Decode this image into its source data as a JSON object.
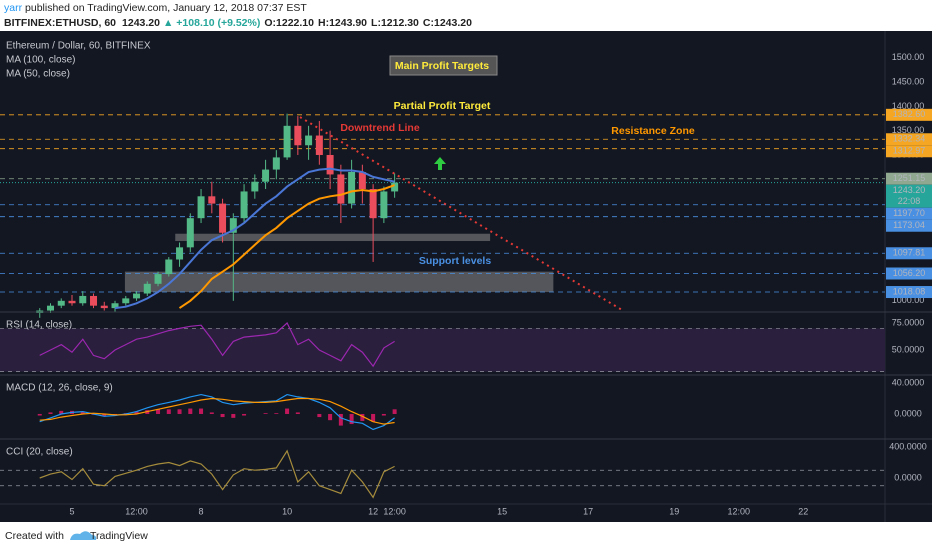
{
  "header": {
    "author": "yarr",
    "published": " published on TradingView.com, January 12, 2018 07:37 EST",
    "symbol": "BITFINEX:ETHUSD, 60",
    "price": "1243.20",
    "change": "▲ +108.10 (+9.52%)",
    "open": "O:1222.10",
    "high": "H:1243.90",
    "low": "L:1212.30",
    "close": "C:1243.20"
  },
  "footer": {
    "created": "Created with",
    "brand": "TradingView"
  },
  "chart_data": [
    {
      "type": "candlestick",
      "title": "Ethereum / Dollar, 60, BITFINEX",
      "up_color": "#53b987",
      "down_color": "#eb4d5c",
      "x": [
        4.25,
        4.5,
        4.75,
        5,
        5.25,
        5.5,
        5.75,
        6,
        6.25,
        6.5,
        6.75,
        7,
        7.25,
        7.5,
        7.75,
        8,
        8.25,
        8.5,
        8.75,
        9,
        9.25,
        9.5,
        9.75,
        10,
        10.25,
        10.5,
        10.75,
        11,
        11.25,
        11.5,
        11.75,
        12,
        12.25,
        12.5
      ],
      "open": [
        975,
        980,
        990,
        1000,
        995,
        1010,
        990,
        985,
        995,
        1005,
        1015,
        1035,
        1055,
        1085,
        1110,
        1170,
        1215,
        1200,
        1140,
        1170,
        1225,
        1245,
        1270,
        1295,
        1360,
        1320,
        1340,
        1300,
        1260,
        1200,
        1265,
        1230,
        1170,
        1225
      ],
      "high": [
        985,
        995,
        1005,
        1012,
        1020,
        1015,
        998,
        1000,
        1010,
        1020,
        1040,
        1060,
        1090,
        1120,
        1180,
        1230,
        1245,
        1210,
        1180,
        1240,
        1260,
        1290,
        1310,
        1385,
        1380,
        1360,
        1370,
        1350,
        1280,
        1290,
        1280,
        1240,
        1235,
        1262
      ],
      "low": [
        965,
        975,
        985,
        990,
        990,
        985,
        980,
        978,
        990,
        1000,
        1010,
        1030,
        1050,
        1070,
        1100,
        1160,
        1180,
        1120,
        1000,
        1160,
        1210,
        1230,
        1250,
        1290,
        1300,
        1290,
        1280,
        1230,
        1160,
        1190,
        1200,
        1080,
        1160,
        1212
      ],
      "close": [
        980,
        990,
        1000,
        995,
        1010,
        990,
        985,
        995,
        1005,
        1015,
        1035,
        1055,
        1085,
        1110,
        1170,
        1215,
        1200,
        1140,
        1170,
        1225,
        1245,
        1270,
        1295,
        1360,
        1320,
        1340,
        1300,
        1260,
        1200,
        1265,
        1230,
        1170,
        1225,
        1243.2
      ],
      "series": [
        {
          "name": "MA (100, close)",
          "color": "#ff9800",
          "values": [
            null,
            null,
            null,
            null,
            null,
            null,
            null,
            null,
            null,
            null,
            null,
            null,
            null,
            985,
            1000,
            1020,
            1045,
            1060,
            1075,
            1095,
            1115,
            1135,
            1150,
            1170,
            1185,
            1200,
            1210,
            1215,
            1218,
            1225,
            1228,
            1225,
            1230,
            1238
          ]
        },
        {
          "name": "MA (50, close)",
          "color": "#4a76d6",
          "values": [
            null,
            null,
            null,
            null,
            null,
            null,
            null,
            985,
            988,
            995,
            1005,
            1018,
            1035,
            1055,
            1080,
            1105,
            1125,
            1135,
            1145,
            1160,
            1180,
            1200,
            1215,
            1235,
            1250,
            1265,
            1270,
            1272,
            1268,
            1268,
            1265,
            1255,
            1250,
            1245
          ]
        }
      ],
      "xlim": [
        3.326,
        23.9
      ],
      "xticks": [
        5,
        {
          "value": 6.5,
          "label": "12:00"
        },
        8,
        10,
        12,
        {
          "value": 12.5,
          "label": "12:00"
        },
        15,
        17,
        19,
        {
          "value": 20.5,
          "label": "12:00"
        },
        22
      ],
      "ylim": [
        977,
        1553
      ],
      "yticks": [
        {
          "value": 1000,
          "label": "1000.00"
        },
        {
          "value": 1300,
          "label": "1300.00"
        },
        {
          "value": 1350,
          "label": "1350.00"
        },
        {
          "value": 1400,
          "label": "1400.00"
        },
        {
          "value": 1450,
          "label": "1450.00"
        },
        {
          "value": 1500,
          "label": "1500.00"
        }
      ],
      "levels": [
        {
          "value": 1382.6,
          "label": "1382.60",
          "color": "#f5a623"
        },
        {
          "value": 1332.34,
          "label": "1332.34",
          "color": "#f5a623"
        },
        {
          "value": 1312.97,
          "label": "1312.97",
          "color": "#f5a623"
        },
        {
          "value": 1251.15,
          "label": "1251.15",
          "color": "#8fa88f"
        },
        {
          "value": 1197.7,
          "label": "1197.70",
          "color": "#4a90e2"
        },
        {
          "value": 1173.04,
          "label": "1173.04",
          "color": "#4a90e2"
        },
        {
          "value": 1097.81,
          "label": "1097.81",
          "color": "#4a90e2"
        },
        {
          "value": 1056.2,
          "label": "1056.20",
          "color": "#4a90e2"
        },
        {
          "value": 1018.08,
          "label": "1018.08",
          "color": "#4a90e2"
        }
      ],
      "last": {
        "value": 1243.2,
        "label": "1243.20",
        "timer": "22:08",
        "color": "#26a69a"
      },
      "zones": [
        {
          "x": [
            7.4,
            14.72
          ],
          "y": [
            1123,
            1138
          ]
        },
        {
          "x": [
            6.23,
            16.19
          ],
          "y": [
            1018,
            1060
          ]
        }
      ],
      "trendline": {
        "x": [
          10.3,
          17.79
        ],
        "y": [
          1378,
          981
        ],
        "color": "#e53935"
      },
      "annotations": [
        {
          "text": "Main Profit Targets",
          "color": "#ffeb3b"
        },
        {
          "text": "Partial Profit Target",
          "color": "#ffeb3b"
        },
        {
          "text": "Downtrend Line",
          "color": "#e53935"
        },
        {
          "text": "Resistance Zone",
          "color": "#ff9800"
        },
        {
          "text": "Support levels",
          "color": "#4a90e2"
        }
      ]
    },
    {
      "type": "line",
      "title": "RSI (14, close)",
      "series": [
        {
          "color": "#9c27b0",
          "values": [
            45,
            50,
            55,
            48,
            60,
            45,
            42,
            50,
            55,
            60,
            62,
            65,
            68,
            70,
            72,
            73,
            60,
            45,
            58,
            62,
            63,
            64,
            66,
            75,
            55,
            60,
            50,
            45,
            40,
            55,
            48,
            35,
            52,
            58
          ]
        }
      ],
      "ylim": [
        27.8,
        84.3
      ],
      "yticks": [
        {
          "value": 75,
          "label": "75.0000"
        },
        {
          "value": 50,
          "label": "50.0000"
        }
      ],
      "band": [
        30,
        70
      ],
      "band_color": "#2a1f3d"
    },
    {
      "type": "line",
      "title": "MACD (12, 26, close, 9)",
      "histogram": {
        "color": "#c2185b",
        "values": [
          -2,
          2,
          4,
          4,
          3,
          -1,
          -3,
          -1,
          1,
          3,
          5,
          6,
          6,
          6,
          7,
          7,
          2,
          -4,
          -5,
          -2,
          0,
          1,
          1,
          7,
          2,
          0,
          -4,
          -8,
          -15,
          -13,
          -9,
          -10,
          -2,
          6
        ]
      },
      "series": [
        {
          "color": "#2196f3",
          "values": [
            -10,
            -5,
            0,
            2,
            3,
            0,
            -3,
            -2,
            0,
            3,
            8,
            12,
            15,
            18,
            22,
            25,
            22,
            15,
            12,
            14,
            15,
            16,
            17,
            25,
            22,
            20,
            15,
            8,
            -5,
            -10,
            -12,
            -20,
            -15,
            -5
          ]
        },
        {
          "color": "#ff9800",
          "values": [
            -8,
            -7,
            -4,
            -2,
            0,
            1,
            0,
            -1,
            -1,
            0,
            3,
            6,
            9,
            12,
            15,
            18,
            20,
            19,
            17,
            16,
            15,
            15,
            16,
            18,
            20,
            20,
            19,
            16,
            10,
            3,
            -3,
            -10,
            -13,
            -11
          ]
        }
      ],
      "ylim": [
        -31,
        49
      ],
      "yticks": [
        {
          "value": 40,
          "label": "40.0000"
        },
        {
          "value": 0,
          "label": "0.0000"
        }
      ]
    },
    {
      "type": "line",
      "title": "CCI (20, close)",
      "series": [
        {
          "color": "#a58c3c",
          "values": [
            0,
            50,
            80,
            -20,
            120,
            -80,
            -100,
            20,
            60,
            100,
            150,
            180,
            200,
            160,
            220,
            180,
            50,
            -150,
            40,
            120,
            100,
            110,
            130,
            350,
            -50,
            80,
            -100,
            -150,
            -200,
            100,
            -50,
            -250,
            80,
            150
          ]
        }
      ],
      "ylim": [
        -310,
        490
      ],
      "yticks": [
        {
          "value": 400,
          "label": "400.0000"
        },
        {
          "value": 0,
          "label": "0.0000"
        }
      ],
      "band": [
        -100,
        100
      ]
    }
  ]
}
